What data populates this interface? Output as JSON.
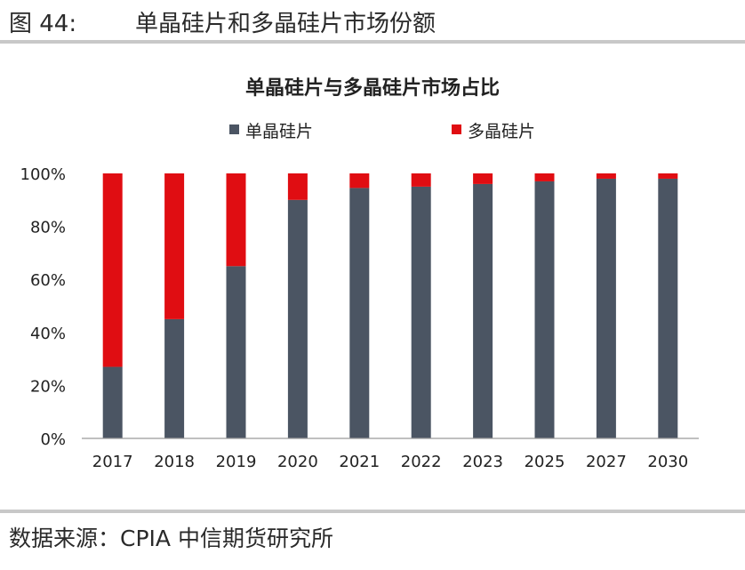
{
  "figure": {
    "number_label": "图 44:",
    "title": "单晶硅片和多晶硅片市场份额",
    "source": "数据来源：CPIA  中信期货研究所"
  },
  "chart_data": {
    "type": "bar",
    "stacked": true,
    "title": "单晶硅片与多晶硅片市场占比",
    "categories": [
      "2017",
      "2018",
      "2019",
      "2020",
      "2021",
      "2022",
      "2023",
      "2025",
      "2027",
      "2030"
    ],
    "series": [
      {
        "name": "单晶硅片",
        "color": "#4b5563",
        "values": [
          27,
          45,
          65,
          90,
          94.5,
          95,
          96,
          97,
          98,
          98
        ]
      },
      {
        "name": "多晶硅片",
        "color": "#e00d12",
        "values": [
          73,
          55,
          35,
          10,
          5.5,
          5,
          4,
          3,
          2,
          2
        ]
      }
    ],
    "ylim": [
      0,
      100
    ],
    "yticks": [
      "0%",
      "20%",
      "40%",
      "60%",
      "80%",
      "100%"
    ],
    "xlabel": "",
    "ylabel": "",
    "legend_position": "top",
    "grid": false
  }
}
